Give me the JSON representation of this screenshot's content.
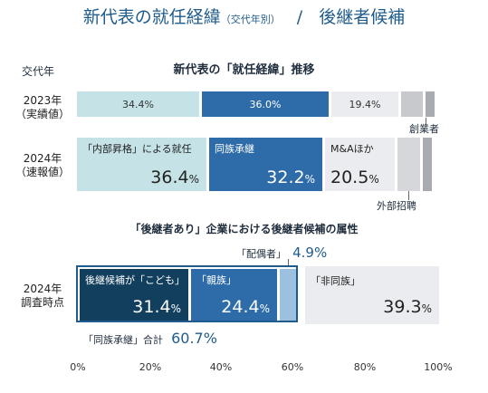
{
  "title": "新代表の就任経緯",
  "title_sub": "（交代年別）",
  "title_sep": "/",
  "title_right": "後継者候補",
  "chart_data": [
    {
      "type": "bar",
      "title": "新代表の「就任経緯」推移",
      "col_header": "交代年",
      "categories": [
        "2023年（実績値）",
        "2024年（速報値）"
      ],
      "series": [
        {
          "name": "「内部昇格」による就任",
          "values": [
            34.4,
            36.4
          ],
          "color": "#c5e3e6"
        },
        {
          "name": "同族承継",
          "values": [
            36.0,
            32.2
          ],
          "color": "#2d6ca8"
        },
        {
          "name": "M&Aほか",
          "values": [
            19.4,
            20.5
          ],
          "color": "#eaecef"
        },
        {
          "name": "外部招聘",
          "values": [
            5.5,
            6.0
          ],
          "color": "#c7c9cc"
        },
        {
          "name": "創業者",
          "values": [
            2.0,
            2.0
          ],
          "color": "#a8abaf"
        }
      ],
      "row1": {
        "l1": "2023年",
        "l2": "（実績値）",
        "v1": "34.4%",
        "v2": "36.0%",
        "v3": "19.4%",
        "note": "創業者"
      },
      "row2": {
        "l1": "2024年",
        "l2": "（速報値）",
        "n1": "「内部昇格」による就任",
        "v1": "36.4",
        "n2": "同族承継",
        "v2": "32.2",
        "n3": "M&Aほか",
        "v3": "20.5",
        "note": "外部招聘"
      },
      "pct": "%"
    },
    {
      "type": "bar",
      "title": "「後継者あり」企業における後継者候補の属性",
      "row_l1": "2024年",
      "row_l2": "調査時点",
      "segments": [
        {
          "name": "後継候補が「こども」",
          "value": 31.4,
          "color": "#123f5e"
        },
        {
          "name": "「親族」",
          "value": 24.4,
          "color": "#2d6ca8"
        },
        {
          "name": "「配偶者」",
          "value": 4.9,
          "color": "#9cc0df"
        },
        {
          "name": "「非同族」",
          "value": 39.3,
          "color": "#eaecef"
        }
      ],
      "labels": {
        "n1": "後継候補が「こども」",
        "v1": "31.4",
        "n2": "「親族」",
        "v2": "24.4",
        "n3": "「配偶者」",
        "v3": "4.9%",
        "n4": "「非同族」",
        "v4": "39.3"
      },
      "group_label": "「同族承継」合計",
      "group_value": "60.7%",
      "xlim": [
        0,
        100
      ],
      "xticks": [
        "0%",
        "20%",
        "40%",
        "60%",
        "80%",
        "100%"
      ]
    }
  ]
}
